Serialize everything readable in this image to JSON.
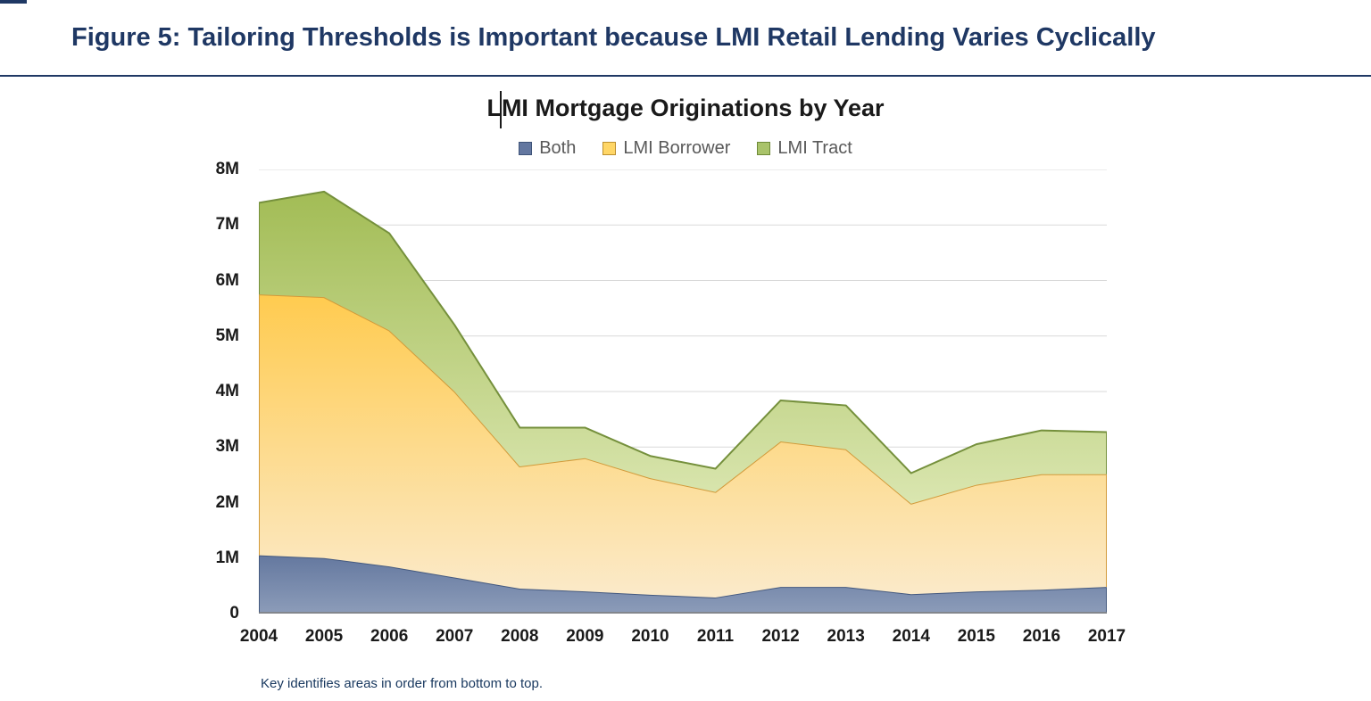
{
  "page": {
    "figure_title": "Figure 5: Tailoring Thresholds is Important because LMI Retail Lending Varies Cyclically",
    "footnote": "Key identifies areas in order from bottom to top.",
    "accent_color": "#1F3864"
  },
  "chart_data": {
    "type": "area",
    "stacked": true,
    "title": "LMI Mortgage Originations by Year",
    "unit": "millions of originations",
    "categories": [
      "2004",
      "2005",
      "2006",
      "2007",
      "2008",
      "2009",
      "2010",
      "2011",
      "2012",
      "2013",
      "2014",
      "2015",
      "2016",
      "2017"
    ],
    "series": [
      {
        "name": "Both",
        "values": [
          1.05,
          1.0,
          0.85,
          0.65,
          0.45,
          0.4,
          0.34,
          0.29,
          0.48,
          0.48,
          0.35,
          0.4,
          0.43,
          0.48
        ],
        "fill_top": "#64789F",
        "fill_bottom": "#8C9CB9",
        "edge": "#44597F",
        "swatch_fill": "#6377A0",
        "swatch_border": "#3E5378"
      },
      {
        "name": "LMI Borrower",
        "values": [
          4.7,
          4.7,
          4.25,
          3.35,
          2.2,
          2.4,
          2.1,
          1.9,
          2.62,
          2.48,
          1.63,
          1.92,
          2.08,
          2.03
        ],
        "fill_top": "#FFCB4F",
        "fill_bottom": "#FBEACA",
        "edge": "#D29A3A",
        "swatch_fill": "#FFD666",
        "swatch_border": "#BC8F2E"
      },
      {
        "name": "LMI Tract",
        "values": [
          1.65,
          1.9,
          1.75,
          1.2,
          0.7,
          0.55,
          0.4,
          0.42,
          0.74,
          0.79,
          0.55,
          0.73,
          0.79,
          0.76
        ],
        "fill_top": "#A2BC55",
        "fill_bottom": "#DAE6B0",
        "edge": "#75903C",
        "swatch_fill": "#A9C36A",
        "swatch_border": "#6E8A38"
      }
    ],
    "stacked_totals": [
      7.4,
      7.6,
      6.85,
      5.2,
      3.35,
      3.35,
      2.84,
      2.61,
      3.84,
      3.75,
      2.53,
      3.05,
      3.3,
      3.27
    ],
    "ylim": [
      0,
      8
    ],
    "yticks": [
      0,
      1,
      2,
      3,
      4,
      5,
      6,
      7,
      8
    ],
    "ytick_labels": [
      "0",
      "1M",
      "2M",
      "3M",
      "4M",
      "5M",
      "6M",
      "7M",
      "8M"
    ],
    "grid": true,
    "legend_position": "top"
  }
}
